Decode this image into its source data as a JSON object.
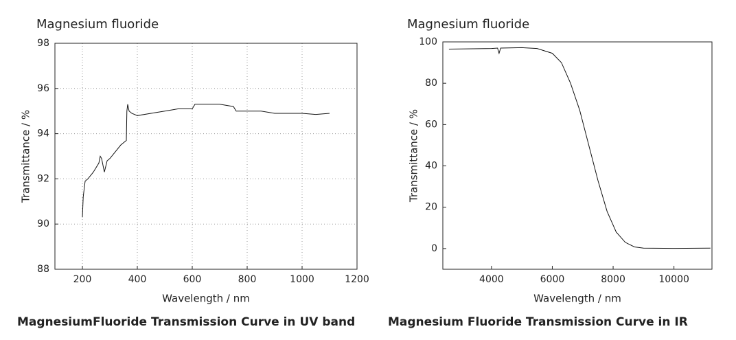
{
  "chart_data": [
    {
      "type": "line",
      "title": "Magnesium fluoride",
      "caption": "MagnesiumFluoride Transmission Curve in UV band",
      "xlabel": "Wavelength / nm",
      "ylabel": "Transmittance / %",
      "xlim": [
        100,
        1200
      ],
      "xticks": [
        200,
        400,
        600,
        800,
        1000,
        1200
      ],
      "ylim": [
        88,
        98
      ],
      "yticks": [
        88,
        90,
        92,
        94,
        96,
        98
      ],
      "grid": true,
      "series": [
        {
          "color": "#111111",
          "x": [
            200,
            203,
            210,
            220,
            240,
            260,
            265,
            270,
            280,
            290,
            300,
            320,
            340,
            360,
            362,
            365,
            370,
            380,
            400,
            450,
            500,
            550,
            600,
            610,
            650,
            700,
            750,
            760,
            800,
            850,
            900,
            1000,
            1050,
            1100
          ],
          "values": [
            90.3,
            91.2,
            91.9,
            92.0,
            92.3,
            92.7,
            93.0,
            92.9,
            92.3,
            92.8,
            92.9,
            93.2,
            93.5,
            93.7,
            95.0,
            95.3,
            95.0,
            94.9,
            94.8,
            94.9,
            95.0,
            95.1,
            95.1,
            95.3,
            95.3,
            95.3,
            95.2,
            95.0,
            95.0,
            95.0,
            94.9,
            94.9,
            94.85,
            94.9
          ]
        }
      ]
    },
    {
      "type": "line",
      "title": "Magnesium fluoride",
      "caption": "Magnesium Fluoride Transmission Curve in IR",
      "xlabel": "Wavelength / nm",
      "ylabel": "Transmittance / %",
      "xlim": [
        2400,
        11250
      ],
      "xticks": [
        4000,
        6000,
        8000,
        10000
      ],
      "ylim": [
        -10,
        100
      ],
      "yticks": [
        0,
        20,
        40,
        60,
        80,
        100
      ],
      "grid": false,
      "series": [
        {
          "color": "#111111",
          "x": [
            2600,
            3000,
            4000,
            4200,
            4250,
            4300,
            5000,
            5500,
            6000,
            6300,
            6600,
            6900,
            7200,
            7500,
            7800,
            8100,
            8400,
            8700,
            9000,
            10000,
            11200
          ],
          "values": [
            96.5,
            96.6,
            96.8,
            97.0,
            94.5,
            97.0,
            97.2,
            96.8,
            94.5,
            90,
            80,
            67,
            50,
            33,
            18,
            8,
            3,
            0.8,
            0.2,
            0.1,
            0.2
          ]
        }
      ]
    }
  ]
}
